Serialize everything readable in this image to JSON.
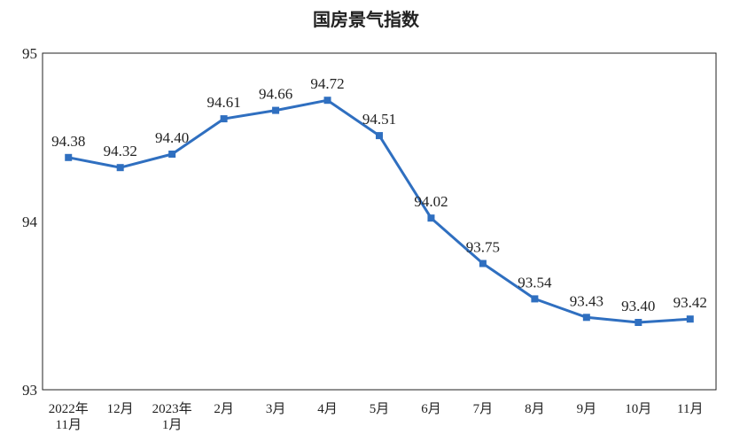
{
  "chart_data": {
    "type": "line",
    "title": "国房景气指数",
    "xlabel": "",
    "ylabel": "",
    "ylim": [
      93,
      95
    ],
    "yticks": [
      "95",
      "94",
      "93"
    ],
    "categories": [
      [
        "2022年",
        "11月"
      ],
      [
        "12月"
      ],
      [
        "2023年",
        "1月"
      ],
      [
        "2月"
      ],
      [
        "3月"
      ],
      [
        "4月"
      ],
      [
        "5月"
      ],
      [
        "6月"
      ],
      [
        "7月"
      ],
      [
        "8月"
      ],
      [
        "9月"
      ],
      [
        "10月"
      ],
      [
        "11月"
      ]
    ],
    "series": [
      {
        "values": [
          94.38,
          94.32,
          94.4,
          94.61,
          94.66,
          94.72,
          94.51,
          94.02,
          93.75,
          93.54,
          93.43,
          93.4,
          93.42
        ],
        "labels": [
          "94.38",
          "94.32",
          "94.40",
          "94.61",
          "94.66",
          "94.72",
          "94.51",
          "94.02",
          "93.75",
          "93.54",
          "93.43",
          "93.40",
          "93.42"
        ],
        "color": "#2f6fc0"
      }
    ],
    "grid": false,
    "legend": "none"
  }
}
